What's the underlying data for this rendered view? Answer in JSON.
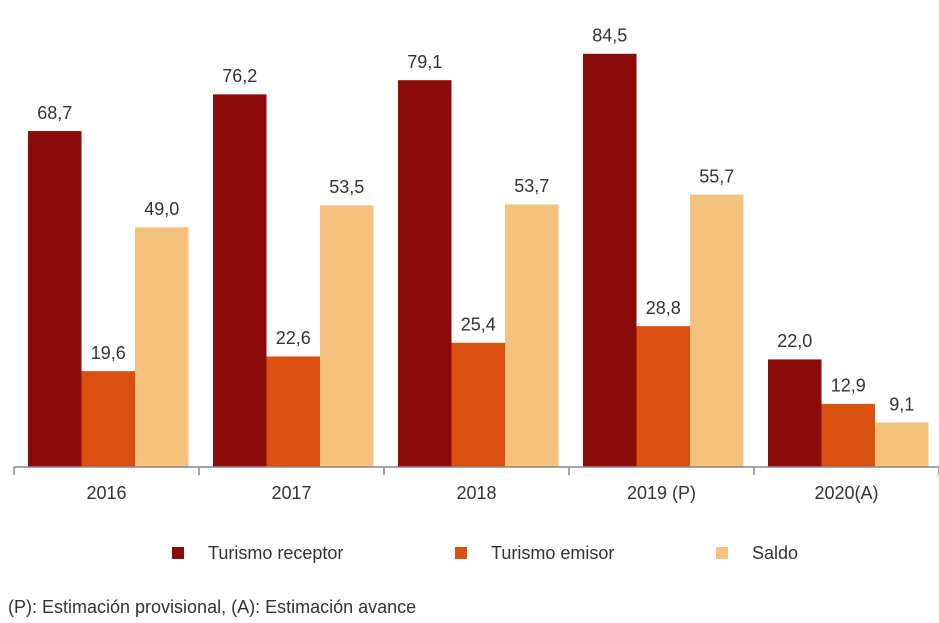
{
  "chart_data": {
    "type": "bar",
    "categories": [
      "2016",
      "2017",
      "2018",
      "2019 (P)",
      "2020(A)"
    ],
    "series": [
      {
        "name": "Turismo receptor",
        "color": "#8b0a0a",
        "values": [
          68.7,
          76.2,
          79.1,
          84.5,
          22.0
        ],
        "value_labels": [
          "68,7",
          "76,2",
          "79,1",
          "84,5",
          "22,0"
        ]
      },
      {
        "name": "Turismo emisor",
        "color": "#d9500f",
        "values": [
          19.6,
          22.6,
          25.4,
          28.8,
          12.9
        ],
        "value_labels": [
          "19,6",
          "22,6",
          "25,4",
          "28,8",
          "12,9"
        ]
      },
      {
        "name": "Saldo",
        "color": "#f5c27e",
        "values": [
          49.0,
          53.5,
          53.7,
          55.7,
          9.1
        ],
        "value_labels": [
          "49,0",
          "53,5",
          "53,7",
          "55,7",
          "9,1"
        ]
      }
    ],
    "legend": "bottom",
    "note": "(P): Estimación provisional, (A): Estimación avance"
  }
}
